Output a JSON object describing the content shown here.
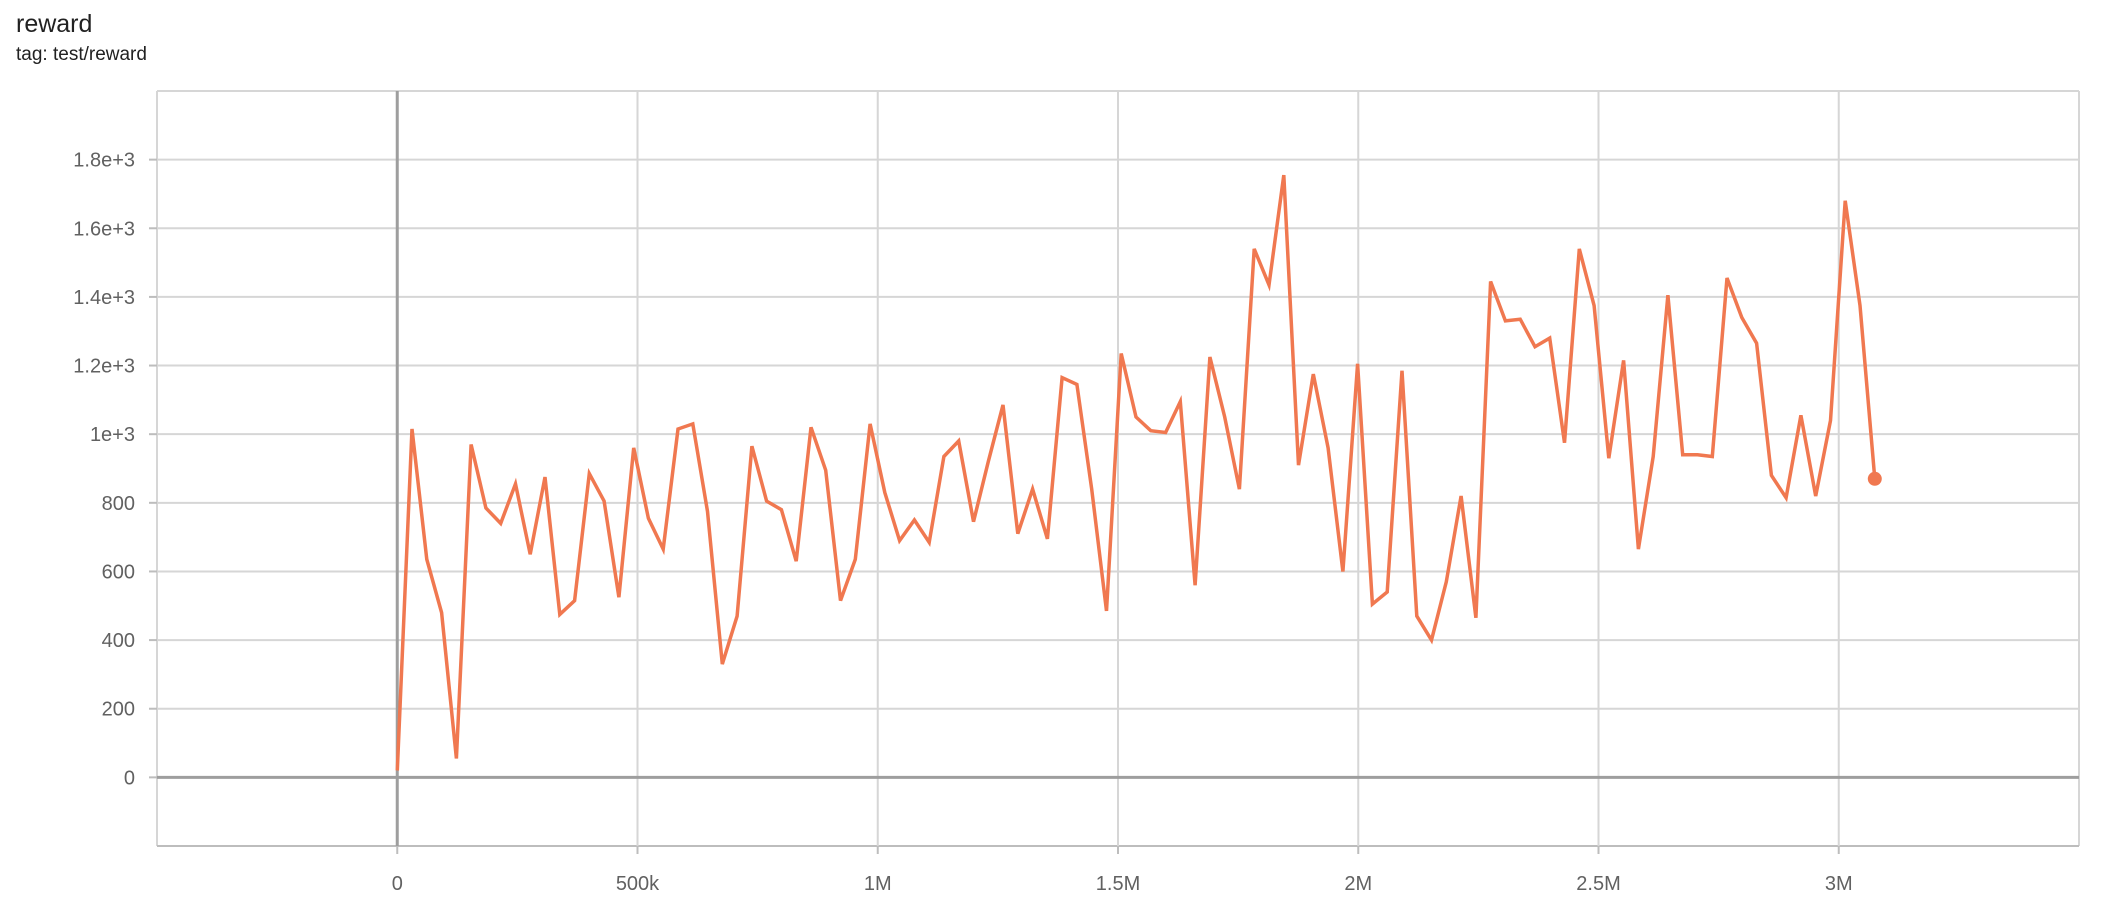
{
  "card": {
    "title": "reward",
    "tag": "tag: test/reward"
  },
  "chart_data": {
    "type": "line",
    "title": "reward",
    "xlabel": "",
    "ylabel": "",
    "xlim": [
      -500000,
      3500000
    ],
    "ylim": [
      -200,
      2000
    ],
    "grid": true,
    "line_color": "#f07850",
    "x_ticks": [
      {
        "v": 0,
        "label": "0"
      },
      {
        "v": 500000,
        "label": "500k"
      },
      {
        "v": 1000000,
        "label": "1M"
      },
      {
        "v": 1500000,
        "label": "1.5M"
      },
      {
        "v": 2000000,
        "label": "2M"
      },
      {
        "v": 2500000,
        "label": "2.5M"
      },
      {
        "v": 3000000,
        "label": "3M"
      }
    ],
    "y_ticks": [
      {
        "v": 0,
        "label": "0"
      },
      {
        "v": 200,
        "label": "200"
      },
      {
        "v": 400,
        "label": "400"
      },
      {
        "v": 600,
        "label": "600"
      },
      {
        "v": 800,
        "label": "800"
      },
      {
        "v": 1000,
        "label": "1e+3"
      },
      {
        "v": 1200,
        "label": "1.2e+3"
      },
      {
        "v": 1400,
        "label": "1.4e+3"
      },
      {
        "v": 1600,
        "label": "1.6e+3"
      },
      {
        "v": 1800,
        "label": "1.8e+3"
      }
    ],
    "series": [
      {
        "x": [
          0,
          30750,
          61500,
          92250,
          123000,
          153750,
          184500,
          215250,
          246000,
          276750,
          307500,
          338250,
          369000,
          399750,
          430500,
          461250,
          492000,
          522750,
          553500,
          584250,
          615000,
          645750,
          676500,
          707250,
          738000,
          768750,
          799500,
          830250,
          861000,
          891750,
          922500,
          953250,
          984000,
          1014750,
          1045500,
          1076250,
          1107000,
          1137750,
          1168500,
          1199250,
          1230000,
          1260750,
          1291500,
          1322250,
          1353000,
          1383750,
          1414500,
          1445250,
          1476000,
          1506750,
          1537500,
          1568250,
          1599000,
          1629750,
          1660500,
          1691250,
          1722000,
          1752750,
          1783500,
          1814250,
          1845000,
          1875750,
          1906500,
          1937250,
          1968000,
          1998750,
          2029500,
          2060250,
          2091000,
          2121750,
          2152500,
          2183250,
          2214000,
          2244750,
          2275500,
          2306250,
          2337000,
          2367750,
          2398500,
          2429250,
          2460000,
          2490750,
          2521500,
          2552250,
          2583000,
          2613750,
          2644500,
          2675250,
          2706000,
          2736750,
          2767500,
          2798250,
          2829000,
          2859750,
          2890500,
          2921250,
          2952000,
          2982750,
          3013500,
          3044250,
          3075000
        ],
        "y": [
          20,
          1015,
          635,
          480,
          55,
          970,
          785,
          740,
          855,
          650,
          875,
          475,
          515,
          885,
          805,
          525,
          960,
          755,
          665,
          1015,
          1030,
          775,
          330,
          470,
          965,
          805,
          780,
          630,
          1020,
          895,
          515,
          635,
          1030,
          830,
          690,
          750,
          685,
          935,
          980,
          745,
          920,
          1085,
          710,
          840,
          695,
          1165,
          1145,
          840,
          485,
          1235,
          1050,
          1010,
          1005,
          1095,
          560,
          1225,
          1050,
          840,
          1540,
          1435,
          1755,
          910,
          1175,
          960,
          600,
          1205,
          505,
          540,
          1185,
          470,
          400,
          570,
          820,
          465,
          1445,
          1330,
          1335,
          1255,
          1280,
          975,
          1540,
          1375,
          930,
          1215,
          665,
          935,
          1405,
          940,
          940,
          935,
          1455,
          1340,
          1265,
          880,
          815,
          1055,
          820,
          1040,
          1680,
          1375,
          870
        ]
      }
    ]
  }
}
